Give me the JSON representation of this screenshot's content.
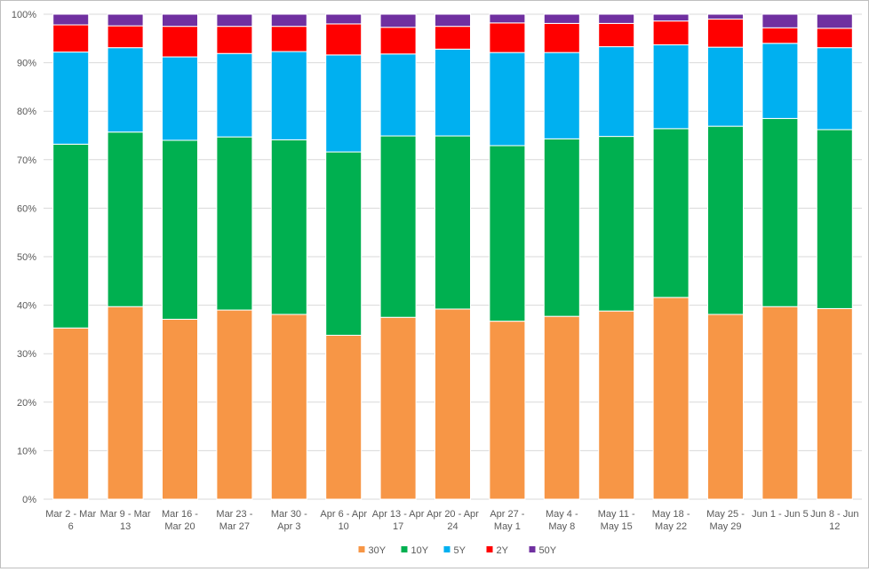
{
  "chart_data": {
    "type": "bar",
    "stacked": true,
    "normalized": true,
    "grid": true,
    "legend_position": "bottom",
    "ylim": [
      0,
      100
    ],
    "ytick_labels": [
      "0%",
      "10%",
      "20%",
      "30%",
      "40%",
      "50%",
      "60%",
      "70%",
      "80%",
      "90%",
      "100%"
    ],
    "categories": [
      [
        "Mar 2 - Mar",
        "6"
      ],
      [
        "Mar 9 - Mar",
        "13"
      ],
      [
        "Mar 16 -",
        "Mar 20"
      ],
      [
        "Mar 23 -",
        "Mar 27"
      ],
      [
        "Mar 30 -",
        "Apr 3"
      ],
      [
        "Apr 6 - Apr",
        "10"
      ],
      [
        "Apr 13 - Apr",
        "17"
      ],
      [
        "Apr 20 - Apr",
        "24"
      ],
      [
        "Apr 27 -",
        "May 1"
      ],
      [
        "May 4 -",
        "May 8"
      ],
      [
        "May 11 -",
        "May 15"
      ],
      [
        "May 18 -",
        "May 22"
      ],
      [
        "May 25 -",
        "May 29"
      ],
      [
        "Jun 1 - Jun 5"
      ],
      [
        "Jun 8 - Jun",
        "12"
      ]
    ],
    "series": [
      {
        "name": "30Y",
        "color": "#f79646",
        "values": [
          35.3,
          39.7,
          37.1,
          39.0,
          38.1,
          33.8,
          37.5,
          39.2,
          36.7,
          37.7,
          38.8,
          41.6,
          38.1,
          39.7,
          39.3
        ]
      },
      {
        "name": "10Y",
        "color": "#00b050",
        "values": [
          37.9,
          36.0,
          36.9,
          35.7,
          36.0,
          37.8,
          37.4,
          35.7,
          36.2,
          36.6,
          36.0,
          34.8,
          38.8,
          38.8,
          36.9
        ]
      },
      {
        "name": "5Y",
        "color": "#00b0f0",
        "values": [
          19.0,
          17.4,
          17.2,
          17.2,
          18.2,
          20.0,
          16.9,
          17.9,
          19.2,
          17.8,
          18.5,
          17.3,
          16.3,
          15.5,
          16.9
        ]
      },
      {
        "name": "2Y",
        "color": "#ff0000",
        "values": [
          5.6,
          4.5,
          6.3,
          5.6,
          5.2,
          6.4,
          5.5,
          4.7,
          6.1,
          6.0,
          4.8,
          4.9,
          5.8,
          3.2,
          4.0
        ]
      },
      {
        "name": "50Y",
        "color": "#7030a0",
        "values": [
          2.2,
          2.4,
          2.5,
          2.5,
          2.5,
          2.0,
          2.7,
          2.5,
          1.8,
          1.9,
          1.9,
          1.4,
          1.0,
          2.8,
          2.9
        ]
      }
    ]
  }
}
